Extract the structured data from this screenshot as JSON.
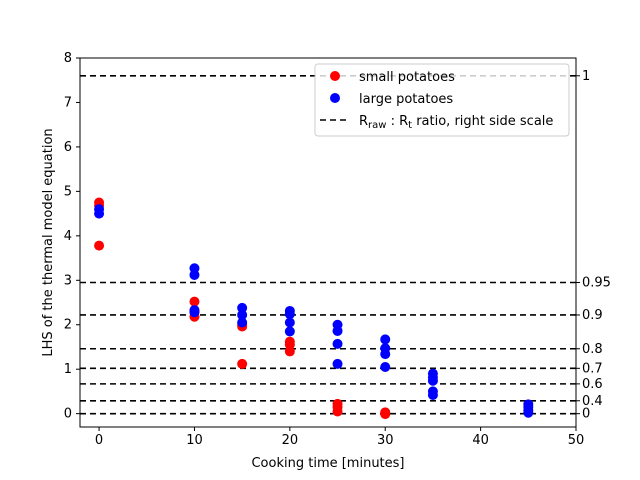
{
  "chart_data": {
    "type": "scatter",
    "xlabel": "Cooking time [minutes]",
    "ylabel": "LHS of the thermal model equation",
    "xlim": [
      -2,
      50
    ],
    "ylim": [
      -0.3,
      8
    ],
    "xticks": [
      0,
      10,
      20,
      30,
      40,
      50
    ],
    "yticks": [
      0,
      1,
      2,
      3,
      4,
      5,
      6,
      7,
      8
    ],
    "legend_position": "top-right",
    "series": [
      {
        "name": "small potatoes",
        "color": "#ff0000",
        "points": [
          {
            "x": 0,
            "y": 4.75
          },
          {
            "x": 0,
            "y": 4.68
          },
          {
            "x": 0,
            "y": 3.78
          },
          {
            "x": 10,
            "y": 2.52
          },
          {
            "x": 10,
            "y": 2.3
          },
          {
            "x": 10,
            "y": 2.18
          },
          {
            "x": 15,
            "y": 2.0
          },
          {
            "x": 15,
            "y": 1.96
          },
          {
            "x": 15,
            "y": 1.12
          },
          {
            "x": 20,
            "y": 1.62
          },
          {
            "x": 20,
            "y": 1.55
          },
          {
            "x": 20,
            "y": 1.4
          },
          {
            "x": 25,
            "y": 0.22
          },
          {
            "x": 25,
            "y": 0.15
          },
          {
            "x": 25,
            "y": 0.05
          },
          {
            "x": 30,
            "y": 0.03
          },
          {
            "x": 30,
            "y": -0.01
          }
        ]
      },
      {
        "name": "large potatoes",
        "color": "#0000ff",
        "points": [
          {
            "x": 0,
            "y": 4.6
          },
          {
            "x": 0,
            "y": 4.5
          },
          {
            "x": 10,
            "y": 3.27
          },
          {
            "x": 10,
            "y": 3.12
          },
          {
            "x": 10,
            "y": 2.33
          },
          {
            "x": 10,
            "y": 2.28
          },
          {
            "x": 15,
            "y": 2.38
          },
          {
            "x": 15,
            "y": 2.22
          },
          {
            "x": 15,
            "y": 2.05
          },
          {
            "x": 20,
            "y": 2.31
          },
          {
            "x": 20,
            "y": 2.24
          },
          {
            "x": 20,
            "y": 2.05
          },
          {
            "x": 20,
            "y": 1.85
          },
          {
            "x": 25,
            "y": 2.0
          },
          {
            "x": 25,
            "y": 1.86
          },
          {
            "x": 25,
            "y": 1.57
          },
          {
            "x": 25,
            "y": 1.12
          },
          {
            "x": 30,
            "y": 1.67
          },
          {
            "x": 30,
            "y": 1.47
          },
          {
            "x": 30,
            "y": 1.34
          },
          {
            "x": 30,
            "y": 1.05
          },
          {
            "x": 35,
            "y": 0.9
          },
          {
            "x": 35,
            "y": 0.82
          },
          {
            "x": 35,
            "y": 0.74
          },
          {
            "x": 35,
            "y": 0.5
          },
          {
            "x": 35,
            "y": 0.42
          },
          {
            "x": 45,
            "y": 0.21
          },
          {
            "x": 45,
            "y": 0.15
          },
          {
            "x": 45,
            "y": 0.08
          },
          {
            "x": 45,
            "y": 0.02
          }
        ]
      }
    ],
    "reference_lines": {
      "legend_label_main": "R",
      "legend_label_sub1": "raw",
      "legend_label_colon": " : R",
      "legend_label_sub2": "t",
      "legend_label_rest": " ratio, right side scale",
      "lines": [
        {
          "y": 7.6,
          "label": "1"
        },
        {
          "y": 2.95,
          "label": "0.95"
        },
        {
          "y": 2.22,
          "label": "0.9"
        },
        {
          "y": 1.46,
          "label": "0.8"
        },
        {
          "y": 1.02,
          "label": "0.7"
        },
        {
          "y": 0.67,
          "label": "0.6"
        },
        {
          "y": 0.29,
          "label": "0.4"
        },
        {
          "y": 0.0,
          "label": "0"
        }
      ]
    }
  }
}
